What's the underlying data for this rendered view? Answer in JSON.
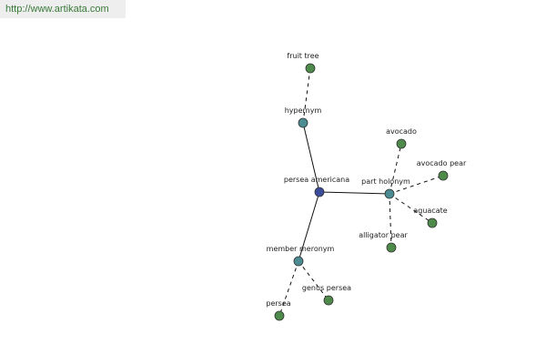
{
  "header": {
    "url": "http://www.artikata.com"
  },
  "nodes": [
    {
      "label": "persea americana"
    },
    {
      "label": "hypernym"
    },
    {
      "label": "fruit tree"
    },
    {
      "label": "part holonym"
    },
    {
      "label": "avocado"
    },
    {
      "label": "avocado pear"
    },
    {
      "label": "aguacate"
    },
    {
      "label": "alligator pear"
    },
    {
      "label": "member meronym"
    },
    {
      "label": "genus persea"
    },
    {
      "label": "persea"
    }
  ]
}
